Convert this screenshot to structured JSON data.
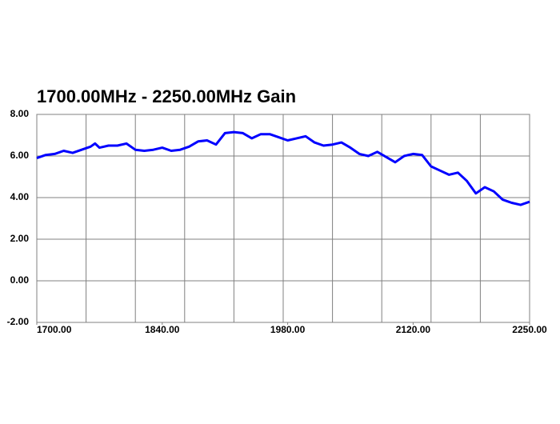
{
  "chart_data": {
    "type": "line",
    "title": "1700.00MHz - 2250.00MHz Gain",
    "x": [
      1700,
      1710,
      1720,
      1730,
      1740,
      1750,
      1760,
      1765,
      1770,
      1780,
      1790,
      1800,
      1810,
      1820,
      1830,
      1840,
      1850,
      1860,
      1870,
      1880,
      1890,
      1900,
      1910,
      1920,
      1930,
      1940,
      1950,
      1960,
      1970,
      1980,
      1990,
      2000,
      2010,
      2020,
      2030,
      2040,
      2050,
      2060,
      2070,
      2080,
      2090,
      2100,
      2110,
      2120,
      2130,
      2140,
      2150,
      2160,
      2170,
      2180,
      2190,
      2200,
      2210,
      2220,
      2230,
      2240,
      2250
    ],
    "series": [
      {
        "color": "#0000ff",
        "values": [
          5.9,
          6.05,
          6.1,
          6.25,
          6.15,
          6.3,
          6.45,
          6.6,
          6.4,
          6.5,
          6.5,
          6.6,
          6.3,
          6.25,
          6.3,
          6.4,
          6.25,
          6.3,
          6.45,
          6.7,
          6.75,
          6.55,
          7.1,
          7.15,
          7.1,
          6.85,
          7.05,
          7.05,
          6.9,
          6.75,
          6.85,
          6.95,
          6.65,
          6.5,
          6.55,
          6.65,
          6.4,
          6.1,
          6.0,
          6.2,
          5.95,
          5.7,
          6.0,
          6.1,
          6.05,
          5.5,
          5.3,
          5.1,
          5.2,
          4.8,
          4.2,
          4.5,
          4.3,
          3.9,
          3.75,
          3.65,
          3.8
        ]
      }
    ],
    "xlim": [
      1700,
      2250
    ],
    "xticks": [
      {
        "value": 1700,
        "label": "1700.00"
      },
      {
        "value": 1840,
        "label": "1840.00"
      },
      {
        "value": 1980,
        "label": "1980.00"
      },
      {
        "value": 2120,
        "label": "2120.00"
      },
      {
        "value": 2250,
        "label": "2250.00"
      }
    ],
    "ylim": [
      -2,
      8
    ],
    "yticks": [
      {
        "value": -2,
        "label": "-2.00"
      },
      {
        "value": 0,
        "label": "0.00"
      },
      {
        "value": 2,
        "label": "2.00"
      },
      {
        "value": 4,
        "label": "4.00"
      },
      {
        "value": 6,
        "label": "6.00"
      },
      {
        "value": 8,
        "label": "8.00"
      }
    ],
    "grid": true
  }
}
